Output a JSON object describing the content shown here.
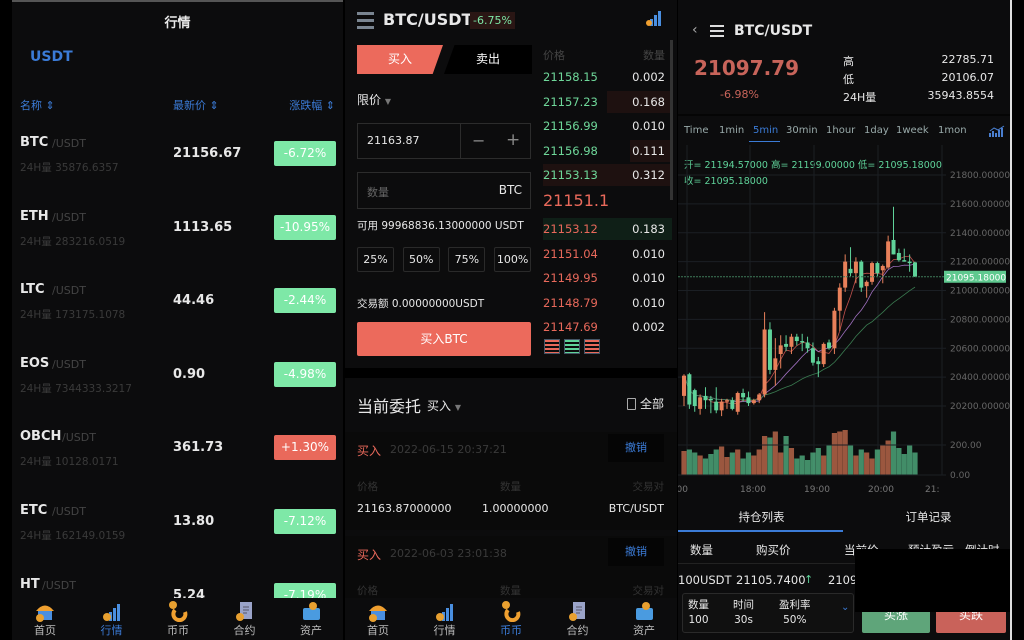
{
  "market": {
    "title": "行情",
    "tab": "USDT",
    "headers": {
      "name": "名称",
      "price": "最新价",
      "change": "涨跌幅"
    },
    "rows": [
      {
        "symbol": "BTC",
        "quote": "/USDT",
        "volume": "24H量 35876.6357",
        "price": "21156.67",
        "change": "-6.72%",
        "dir": "down"
      },
      {
        "symbol": "ETH",
        "quote": "/USDT",
        "volume": "24H量 283216.0519",
        "price": "1113.65",
        "change": "-10.95%",
        "dir": "down"
      },
      {
        "symbol": "LTC",
        "quote": "/USDT",
        "volume": "24H量 173175.1078",
        "price": "44.46",
        "change": "-2.44%",
        "dir": "down"
      },
      {
        "symbol": "EOS",
        "quote": "/USDT",
        "volume": "24H量 7344333.3217",
        "price": "0.90",
        "change": "-4.98%",
        "dir": "down"
      },
      {
        "symbol": "OBCH",
        "quote": "/USDT",
        "volume": "24H量 10128.0171",
        "price": "361.73",
        "change": "+1.30%",
        "dir": "up"
      },
      {
        "symbol": "ETC",
        "quote": "/USDT",
        "volume": "24H量 162149.0159",
        "price": "13.80",
        "change": "-7.12%",
        "dir": "down"
      },
      {
        "symbol": "HT",
        "quote": "/USDT",
        "volume": "",
        "price": "5.24",
        "change": "-7.19%",
        "dir": "down"
      }
    ]
  },
  "nav": {
    "items": [
      "首页",
      "行情",
      "币币",
      "合约",
      "资产"
    ]
  },
  "trade": {
    "pair": "BTC/USDT",
    "change": "-6.75%",
    "buy_tab": "买入",
    "sell_tab": "卖出",
    "order_type": "限价",
    "price_value": "21163.87",
    "qty_placeholder": "数量",
    "qty_unit": "BTC",
    "available": "可用 99968836.13000000 USDT",
    "pct": [
      "25%",
      "50%",
      "75%",
      "100%"
    ],
    "amount": "交易额 0.00000000USDT",
    "buy_button": "买入BTC",
    "orderbook": {
      "price_header": "价格",
      "qty_header": "数量",
      "asks": [
        [
          "21158.15",
          "0.002"
        ],
        [
          "21157.23",
          "0.168"
        ],
        [
          "21156.99",
          "0.010"
        ],
        [
          "21156.98",
          "0.111"
        ],
        [
          "21153.13",
          "0.312"
        ]
      ],
      "last": "21151.1",
      "bids": [
        [
          "21153.12",
          "0.183"
        ],
        [
          "21151.04",
          "0.010"
        ],
        [
          "21149.95",
          "0.010"
        ],
        [
          "21148.79",
          "0.010"
        ],
        [
          "21147.69",
          "0.002"
        ]
      ]
    },
    "orders": {
      "title": "当前委托",
      "filter": "买入",
      "all": "全部",
      "labels": {
        "price": "价格",
        "qty": "数量",
        "pair": "交易对"
      },
      "cancel": "撤销",
      "items": [
        {
          "side": "买入",
          "time": "2022-06-15 20:37:21",
          "price": "21163.87000000",
          "qty": "1.00000000",
          "pair": "BTC/USDT"
        },
        {
          "side": "买入",
          "time": "2022-06-03 23:01:38"
        }
      ]
    }
  },
  "detail": {
    "pair": "BTC/USDT",
    "price": "21097.79",
    "change": "-6.98%",
    "stats": [
      {
        "label": "高",
        "value": "22785.71"
      },
      {
        "label": "低",
        "value": "20106.07"
      },
      {
        "label": "24H量",
        "value": "35943.8554"
      }
    ],
    "timeframes": [
      "Time",
      "1min",
      "5min",
      "30min",
      "1hour",
      "1day",
      "1week",
      "1mon"
    ],
    "active_timeframe": "5min",
    "ohlc_line1": "开= 21194.57000  高= 21199.00000  低= 21095.18000",
    "ohlc_line2": "收= 21095.18000",
    "tabs": [
      "持仓列表",
      "订单记录"
    ],
    "pos_headers": [
      "数量",
      "购买价",
      "当前价",
      "预计盈亏",
      "倒计时"
    ],
    "position": {
      "amount": "100USDT",
      "buy_price": "21105.7400",
      "current": "2109"
    },
    "card": {
      "qty_label": "数量",
      "qty": "100",
      "time_label": "时间",
      "time": "30s",
      "rate_label": "盈利率",
      "rate": "50%"
    },
    "buy_up": "买涨",
    "buy_down": "买跌"
  },
  "colors": {
    "up": "#e9695b",
    "down": "#7ee8a7",
    "accent": "#3b7bd6",
    "candle_up": "#e8805a",
    "candle_down": "#5fd39a"
  },
  "chart_data": {
    "type": "candlestick",
    "price_ticks": [
      "21800.00000",
      "21600.00000",
      "21400.00000",
      "21200.00000",
      "21000.00000",
      "20800.00000",
      "20600.00000",
      "20400.00000",
      "20200.00000"
    ],
    "current_price_label": "21095.18000",
    "volume_ticks": [
      "200.00",
      "0.00"
    ],
    "time_ticks": [
      "17:00",
      "18:00",
      "19:00",
      "20:00",
      "21:"
    ],
    "ylim": [
      20100,
      21900
    ],
    "candles": [
      [
        20270,
        20420,
        20200,
        20410
      ],
      [
        20420,
        20430,
        20180,
        20210
      ],
      [
        20310,
        20320,
        20160,
        20200
      ],
      [
        20180,
        20280,
        20140,
        20260
      ],
      [
        20270,
        20330,
        20180,
        20240
      ],
      [
        20250,
        20270,
        20150,
        20240
      ],
      [
        20230,
        20330,
        20150,
        20170
      ],
      [
        20170,
        20250,
        20130,
        20230
      ],
      [
        20230,
        20250,
        20180,
        20240
      ],
      [
        20240,
        20260,
        20170,
        20180
      ],
      [
        20160,
        20300,
        20140,
        20290
      ],
      [
        20290,
        20320,
        20230,
        20260
      ],
      [
        20260,
        20300,
        20200,
        20220
      ],
      [
        20220,
        20250,
        20210,
        20240
      ],
      [
        20240,
        20290,
        20220,
        20280
      ],
      [
        20280,
        20850,
        20260,
        20730
      ],
      [
        20730,
        20780,
        20420,
        20450
      ],
      [
        20450,
        20670,
        20340,
        20530
      ],
      [
        20560,
        20690,
        20460,
        20620
      ],
      [
        20630,
        20690,
        20580,
        20610
      ],
      [
        20610,
        20700,
        20560,
        20680
      ],
      [
        20680,
        20700,
        20620,
        20650
      ],
      [
        20650,
        20700,
        20580,
        20640
      ],
      [
        20640,
        20680,
        20570,
        20600
      ],
      [
        20600,
        20640,
        20480,
        20500
      ],
      [
        20510,
        20540,
        20400,
        20490
      ],
      [
        20490,
        20640,
        20470,
        20630
      ],
      [
        20640,
        20660,
        20590,
        20600
      ],
      [
        20600,
        20880,
        20560,
        20860
      ],
      [
        20860,
        21050,
        20720,
        21020
      ],
      [
        21020,
        21250,
        20990,
        21200
      ],
      [
        21150,
        21300,
        21100,
        21120
      ],
      [
        21120,
        21230,
        21050,
        21200
      ],
      [
        21200,
        21210,
        20990,
        21020
      ],
      [
        21030,
        21070,
        20950,
        21060
      ],
      [
        21060,
        21200,
        21040,
        21190
      ],
      [
        21190,
        21200,
        21100,
        21120
      ],
      [
        21140,
        21180,
        21050,
        21170
      ],
      [
        21160,
        21380,
        21150,
        21340
      ],
      [
        21350,
        21580,
        21250,
        21250
      ],
      [
        21260,
        21290,
        21200,
        21210
      ],
      [
        21210,
        21290,
        21200,
        21200
      ],
      [
        21200,
        21250,
        21130,
        21190
      ],
      [
        21194.57,
        21199,
        21095.18,
        21095.18
      ]
    ],
    "volumes": [
      160,
      170,
      150,
      130,
      110,
      140,
      170,
      190,
      120,
      150,
      170,
      110,
      150,
      130,
      170,
      260,
      250,
      290,
      150,
      260,
      180,
      110,
      130,
      100,
      150,
      180,
      130,
      200,
      280,
      290,
      300,
      200,
      130,
      170,
      150,
      110,
      170,
      200,
      230,
      290,
      180,
      140,
      200,
      150
    ]
  }
}
